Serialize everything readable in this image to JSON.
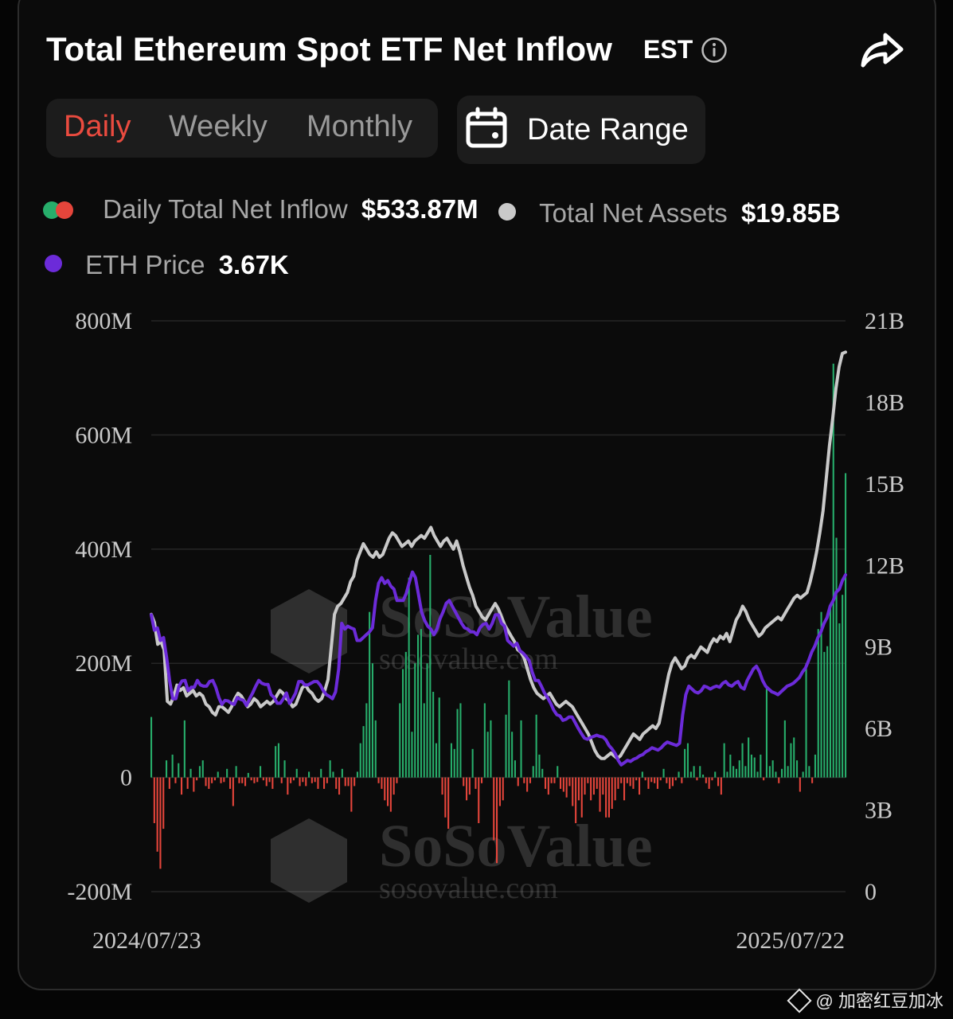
{
  "header": {
    "title": "Total Ethereum Spot ETF Net Inflow",
    "timezone": "EST"
  },
  "tabs": [
    {
      "label": "Daily",
      "active": true
    },
    {
      "label": "Weekly",
      "active": false
    },
    {
      "label": "Monthly",
      "active": false
    }
  ],
  "date_range": {
    "label": "Date Range"
  },
  "legend": {
    "inflow": {
      "label": "Daily Total Net Inflow",
      "value": "$533.87M"
    },
    "assets": {
      "label": "Total Net Assets",
      "value": "$19.85B"
    },
    "price": {
      "label": "ETH Price",
      "value": "3.67K"
    }
  },
  "watermark": {
    "brand": "SoSoValue",
    "site": "sosovalue.com"
  },
  "footer": {
    "credit": "@ 加密红豆加冰"
  },
  "colors": {
    "positive": "#27ae6b",
    "negative": "#e5453b",
    "assets_line": "#c9c9c9",
    "price_line": "#6c2bd9",
    "accent_tab": "#ea4b3f"
  },
  "chart_data": {
    "type": "bar",
    "x_labels": [
      "2024/07/23",
      "2025/07/22"
    ],
    "left_axis": {
      "ticks": [
        "800M",
        "600M",
        "400M",
        "200M",
        "0",
        "-200M"
      ],
      "ylim": [
        -200,
        800
      ],
      "unit": "M"
    },
    "right_axis": {
      "ticks": [
        "21B",
        "18B",
        "15B",
        "12B",
        "9B",
        "6B",
        "3B",
        "0"
      ],
      "ylim": [
        0,
        21
      ],
      "unit": "B"
    },
    "grid": true,
    "series": [
      {
        "name": "Daily Total Net Inflow",
        "axis": "left",
        "type": "bar",
        "values": [
          106,
          -80,
          -130,
          -160,
          -90,
          30,
          -20,
          40,
          -10,
          25,
          -30,
          100,
          -20,
          15,
          -25,
          -5,
          20,
          30,
          -15,
          -20,
          -10,
          -5,
          10,
          -10,
          -8,
          15,
          -20,
          -50,
          20,
          -10,
          -10,
          -15,
          8,
          -5,
          -10,
          -8,
          20,
          -5,
          -15,
          -8,
          -20,
          55,
          60,
          -10,
          30,
          -30,
          -10,
          -5,
          15,
          -15,
          -8,
          -15,
          10,
          -10,
          -8,
          -20,
          15,
          -20,
          -10,
          30,
          10,
          -20,
          -30,
          15,
          -15,
          -15,
          -60,
          -15,
          10,
          60,
          90,
          130,
          290,
          200,
          100,
          -10,
          -20,
          -40,
          -50,
          -60,
          -30,
          -10,
          130,
          190,
          220,
          350,
          80,
          200,
          250,
          260,
          130,
          200,
          390,
          150,
          60,
          140,
          -30,
          -70,
          -90,
          60,
          50,
          120,
          130,
          -15,
          -40,
          -30,
          50,
          -20,
          -80,
          -10,
          130,
          80,
          100,
          -110,
          -150,
          -50,
          -40,
          110,
          170,
          80,
          30,
          -15,
          100,
          -10,
          -25,
          -10,
          20,
          110,
          40,
          15,
          -20,
          -30,
          -10,
          -10,
          20,
          -20,
          -25,
          -35,
          -15,
          -50,
          -80,
          -40,
          -70,
          -30,
          -10,
          -40,
          -30,
          -20,
          -60,
          -30,
          -70,
          -70,
          -55,
          -40,
          -20,
          -10,
          -40,
          -10,
          -15,
          -20,
          -5,
          -30,
          10,
          -5,
          -20,
          -8,
          -10,
          -20,
          -5,
          15,
          -10,
          -20,
          -15,
          -5,
          10,
          -10,
          50,
          60,
          10,
          20,
          -5,
          20,
          5,
          -10,
          -20,
          -5,
          10,
          -15,
          -30,
          60,
          10,
          40,
          20,
          15,
          30,
          60,
          20,
          70,
          40,
          35,
          10,
          40,
          -5,
          160,
          20,
          30,
          10,
          -10,
          15,
          100,
          20,
          60,
          70,
          30,
          -25,
          10,
          200,
          20,
          -10,
          40,
          260,
          290,
          220,
          230,
          300,
          725,
          420,
          270,
          320,
          533
        ],
        "color": "#27ae6b / #e5453b"
      },
      {
        "name": "Total Net Assets",
        "axis": "right",
        "type": "line",
        "values": [
          10.2,
          9.9,
          9.1,
          9.2,
          8.9,
          7.0,
          6.9,
          7.2,
          7.6,
          7.4,
          7.5,
          7.2,
          7.3,
          7.4,
          7.2,
          7.3,
          7.2,
          6.9,
          6.8,
          6.6,
          6.5,
          6.8,
          6.8,
          6.7,
          6.6,
          6.8,
          7.1,
          7.3,
          7.2,
          7.0,
          6.8,
          6.9,
          7.1,
          7.0,
          6.8,
          6.9,
          7.0,
          6.9,
          7.0,
          7.2,
          7.4,
          7.3,
          7.1,
          7.0,
          6.8,
          6.9,
          7.2,
          7.5,
          7.6,
          7.4,
          7.3,
          7.1,
          7.0,
          7.1,
          7.4,
          7.8,
          9.0,
          10.2,
          10.5,
          10.6,
          10.8,
          11.0,
          11.4,
          11.6,
          12.2,
          12.5,
          12.8,
          12.6,
          12.4,
          12.3,
          12.5,
          12.3,
          12.4,
          12.7,
          13.0,
          13.2,
          13.1,
          12.9,
          12.7,
          12.8,
          12.9,
          12.7,
          12.9,
          13.0,
          13.1,
          13.0,
          13.2,
          13.4,
          13.1,
          12.9,
          12.7,
          12.9,
          13.0,
          12.8,
          12.6,
          12.9,
          12.5,
          12.0,
          11.6,
          11.2,
          10.9,
          10.5,
          10.3,
          10.1,
          10.0,
          10.2,
          10.4,
          10.6,
          10.4,
          10.1,
          9.8,
          9.6,
          9.4,
          9.2,
          8.9,
          8.8,
          8.6,
          8.2,
          7.8,
          7.5,
          7.3,
          7.2,
          7.1,
          7.2,
          7.3,
          7.1,
          6.9,
          6.8,
          6.9,
          7.0,
          6.9,
          6.8,
          6.6,
          6.4,
          6.2,
          6.0,
          5.8,
          5.5,
          5.2,
          5.0,
          4.9,
          4.9,
          5.0,
          5.1,
          5.0,
          4.9,
          5.0,
          5.2,
          5.4,
          5.6,
          5.8,
          5.7,
          5.6,
          5.8,
          5.9,
          6.0,
          6.1,
          6.0,
          6.2,
          6.8,
          7.4,
          8.0,
          8.4,
          8.6,
          8.4,
          8.2,
          8.3,
          8.6,
          8.7,
          8.6,
          8.8,
          9.0,
          8.9,
          8.8,
          9.1,
          9.3,
          9.2,
          9.4,
          9.3,
          9.5,
          9.2,
          9.6,
          10.0,
          10.2,
          10.5,
          10.3,
          10.0,
          9.8,
          9.6,
          9.4,
          9.5,
          9.7,
          9.8,
          9.9,
          10.0,
          10.1,
          10.0,
          10.2,
          10.4,
          10.6,
          10.8,
          10.9,
          10.8,
          10.9,
          11.0,
          11.4,
          11.9,
          12.5,
          13.2,
          14.0,
          15.2,
          16.4,
          17.4,
          18.5,
          19.3,
          19.8,
          19.85
        ],
        "color": "#c9c9c9"
      },
      {
        "name": "ETH Price",
        "axis": "left",
        "type": "line",
        "values": [
          285,
          258,
          262,
          240,
          245,
          210,
          168,
          138,
          138,
          160,
          169,
          170,
          152,
          158,
          158,
          170,
          162,
          160,
          160,
          168,
          170,
          158,
          140,
          128,
          135,
          134,
          130,
          128,
          140,
          137,
          135,
          126,
          138,
          148,
          160,
          170,
          165,
          163,
          163,
          145,
          140,
          130,
          130,
          138,
          148,
          130,
          138,
          148,
          168,
          168,
          162,
          162,
          165,
          168,
          168,
          162,
          152,
          145,
          142,
          138,
          150,
          190,
          270,
          260,
          265,
          262,
          260,
          240,
          240,
          245,
          250,
          255,
          262,
          310,
          340,
          350,
          340,
          345,
          335,
          330,
          310,
          310,
          310,
          322,
          342,
          360,
          350,
          320,
          290,
          275,
          265,
          260,
          250,
          260,
          278,
          290,
          305,
          310,
          300,
          290,
          280,
          270,
          262,
          260,
          255,
          255,
          250,
          262,
          268,
          270,
          260,
          270,
          285,
          285,
          270,
          265,
          240,
          235,
          230,
          235,
          222,
          218,
          212,
          205,
          185,
          170,
          170,
          160,
          148,
          140,
          130,
          118,
          110,
          108,
          100,
          102,
          106,
          106,
          96,
          86,
          77,
          69,
          67,
          70,
          72,
          74,
          72,
          71,
          66,
          56,
          50,
          42,
          30,
          22,
          26,
          30,
          28,
          32,
          34,
          38,
          40,
          45,
          48,
          52,
          50,
          48,
          52,
          58,
          62,
          60,
          58,
          56,
          60,
          110,
          145,
          160,
          155,
          150,
          148,
          152,
          160,
          158,
          155,
          158,
          160,
          158,
          165,
          168,
          162,
          160,
          165,
          168,
          158,
          155,
          170,
          180,
          190,
          195,
          185,
          170,
          160,
          155,
          150,
          148,
          145,
          150,
          155,
          160,
          162,
          165,
          170,
          175,
          185,
          192,
          205,
          220,
          230,
          245,
          255,
          270,
          280,
          300,
          310,
          325,
          330,
          345,
          355
        ],
        "color": "#6c2bd9"
      }
    ]
  }
}
